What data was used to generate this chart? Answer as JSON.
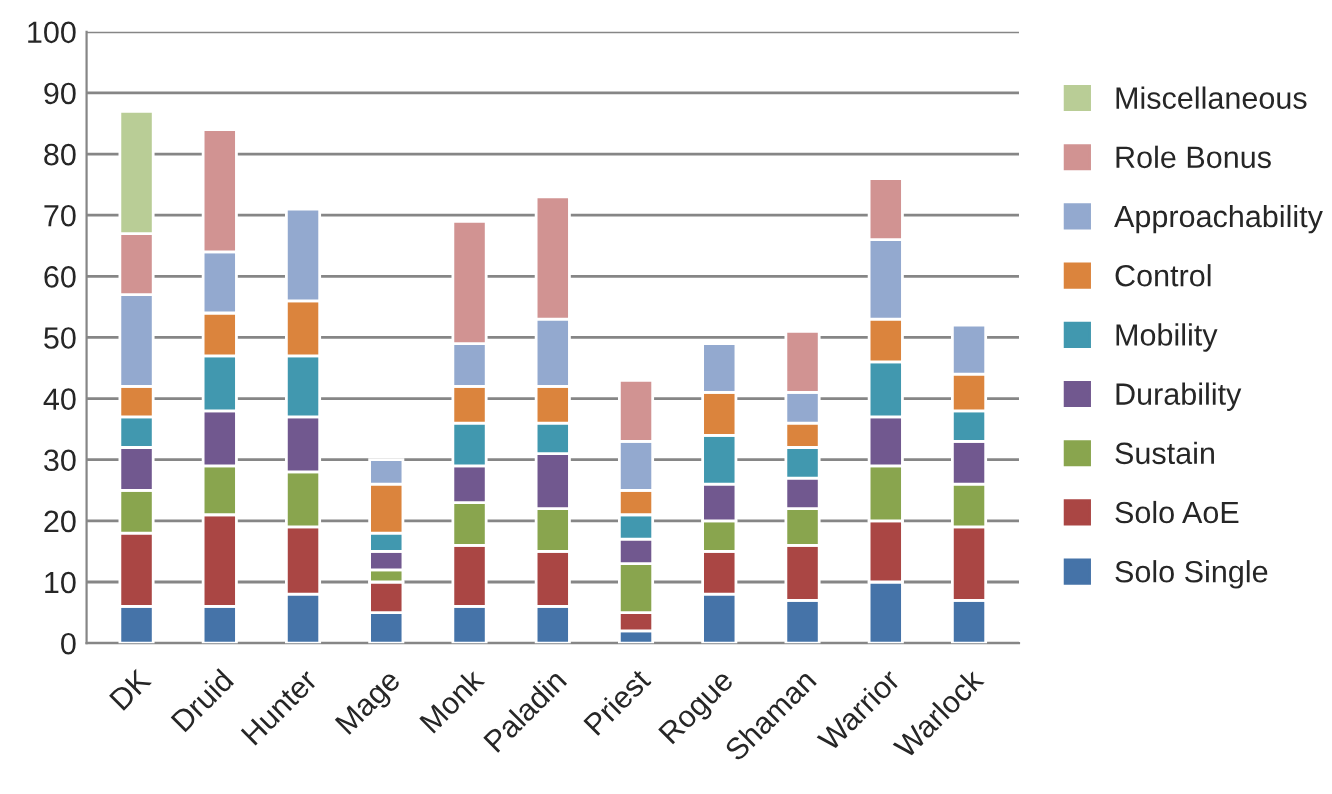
{
  "chart_data": {
    "type": "bar",
    "stacked": true,
    "categories": [
      "DK",
      "Druid",
      "Hunter",
      "Mage",
      "Monk",
      "Paladin",
      "Priest",
      "Rogue",
      "Shaman",
      "Warrior",
      "Warlock"
    ],
    "series": [
      {
        "name": "Solo Single",
        "color": "#4573a8",
        "values": [
          6,
          6,
          8,
          5,
          6,
          6,
          2,
          8,
          7,
          10,
          7
        ]
      },
      {
        "name": "Solo AoE",
        "color": "#aa4644",
        "values": [
          12,
          15,
          11,
          5,
          10,
          9,
          3,
          7,
          9,
          10,
          12
        ]
      },
      {
        "name": "Sustain",
        "color": "#89a54e",
        "values": [
          7,
          8,
          9,
          2,
          7,
          7,
          8,
          5,
          6,
          9,
          7
        ]
      },
      {
        "name": "Durability",
        "color": "#71588f",
        "values": [
          7,
          9,
          9,
          3,
          6,
          9,
          4,
          6,
          5,
          8,
          7
        ]
      },
      {
        "name": "Mobility",
        "color": "#4198af",
        "values": [
          5,
          9,
          10,
          3,
          7,
          5,
          4,
          8,
          5,
          9,
          5
        ]
      },
      {
        "name": "Control",
        "color": "#db843d",
        "values": [
          5,
          7,
          9,
          8,
          6,
          6,
          4,
          7,
          4,
          7,
          6
        ]
      },
      {
        "name": "Approachability",
        "color": "#93a9cf",
        "values": [
          15,
          10,
          15,
          4,
          7,
          11,
          8,
          8,
          5,
          13,
          8
        ]
      },
      {
        "name": "Role Bonus",
        "color": "#d19392",
        "values": [
          10,
          20,
          null,
          null,
          20,
          20,
          10,
          null,
          10,
          10,
          null
        ]
      },
      {
        "name": "Miscellaneous",
        "color": "#b9cd96",
        "values": [
          20,
          null,
          null,
          null,
          null,
          null,
          null,
          null,
          null,
          null,
          null
        ]
      }
    ],
    "ylim": [
      0,
      100
    ],
    "yticks": [
      0,
      10,
      20,
      30,
      40,
      50,
      60,
      70,
      80,
      90,
      100
    ],
    "grid": "y",
    "legend": "right"
  }
}
